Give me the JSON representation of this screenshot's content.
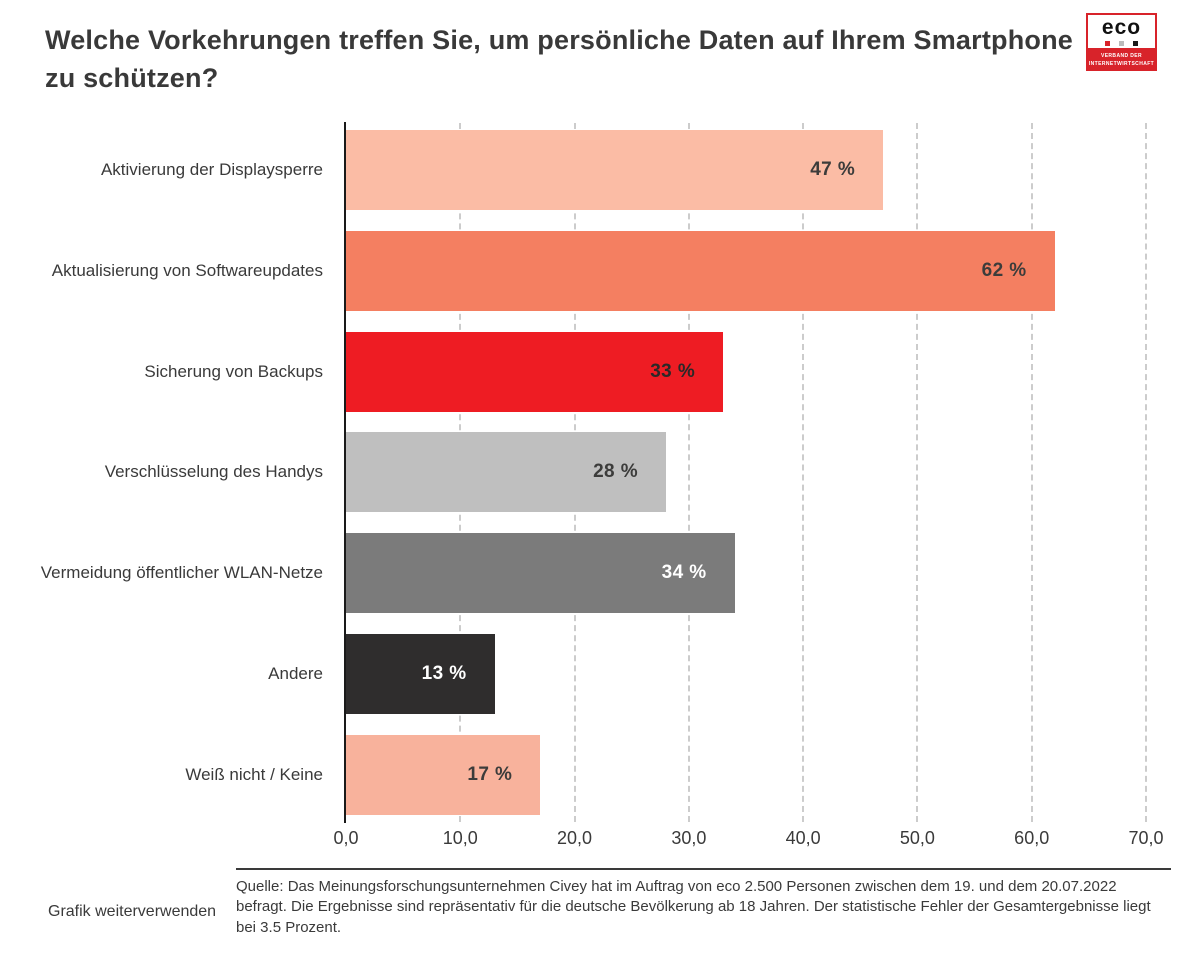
{
  "page": {
    "title": "Welche Vorkehrungen treffen Sie, um persönliche Daten auf Ihrem Smartphone zu schützen?",
    "footer_link": "Grafik weiterverwenden",
    "source": "Quelle: Das Meinungsforschungsunternehmen Civey hat im Auftrag von eco 2.500 Personen zwischen dem 19. und dem 20.07.2022 befragt. Die Ergebnisse sind repräsentativ für die deutsche Bevölkerung ab 18 Jahren. Der statistische Fehler der Gesamtergebnisse liegt bei 3.5 Prozent."
  },
  "logo": {
    "name": "eco",
    "tagline_line1": "VERBAND DER",
    "tagline_line2": "INTERNETWIRTSCHAFT",
    "brand_red": "#d8232a",
    "dot_colors": [
      "#d8232a",
      "#bbbbbb",
      "#1a1a1a"
    ]
  },
  "chart_data": {
    "type": "bar",
    "orientation": "horizontal",
    "title": "Welche Vorkehrungen treffen Sie, um persönliche Daten auf Ihrem Smartphone zu schützen?",
    "categories": [
      "Aktivierung der Displaysperre",
      "Aktualisierung von Softwareupdates",
      "Sicherung von Backups",
      "Verschlüsselung des Handys",
      "Vermeidung öffentlicher WLAN-Netze",
      "Andere",
      "Weiß nicht / Keine"
    ],
    "values": [
      47,
      62,
      33,
      28,
      34,
      13,
      17
    ],
    "value_labels": [
      "47 %",
      "62 %",
      "33 %",
      "28 %",
      "34 %",
      "13 %",
      "17 %"
    ],
    "bar_colors": [
      "#fbbca5",
      "#f47f61",
      "#ee1c23",
      "#bfbfbf",
      "#7b7b7b",
      "#2f2d2d",
      "#f8b29c"
    ],
    "value_text_colors": [
      "#3c3c3b",
      "#3c3c3b",
      "#2b2828",
      "#3c3c3b",
      "#ffffff",
      "#ffffff",
      "#3c3c3b"
    ],
    "xlabel": "",
    "ylabel": "",
    "xlim": [
      0,
      70
    ],
    "x_ticks": [
      "0,0",
      "10,0",
      "20,0",
      "30,0",
      "40,0",
      "50,0",
      "60,0",
      "70,0"
    ],
    "x_tick_values": [
      0,
      10,
      20,
      30,
      40,
      50,
      60,
      70
    ],
    "grid": "dashed-vertical",
    "legend": "none"
  }
}
